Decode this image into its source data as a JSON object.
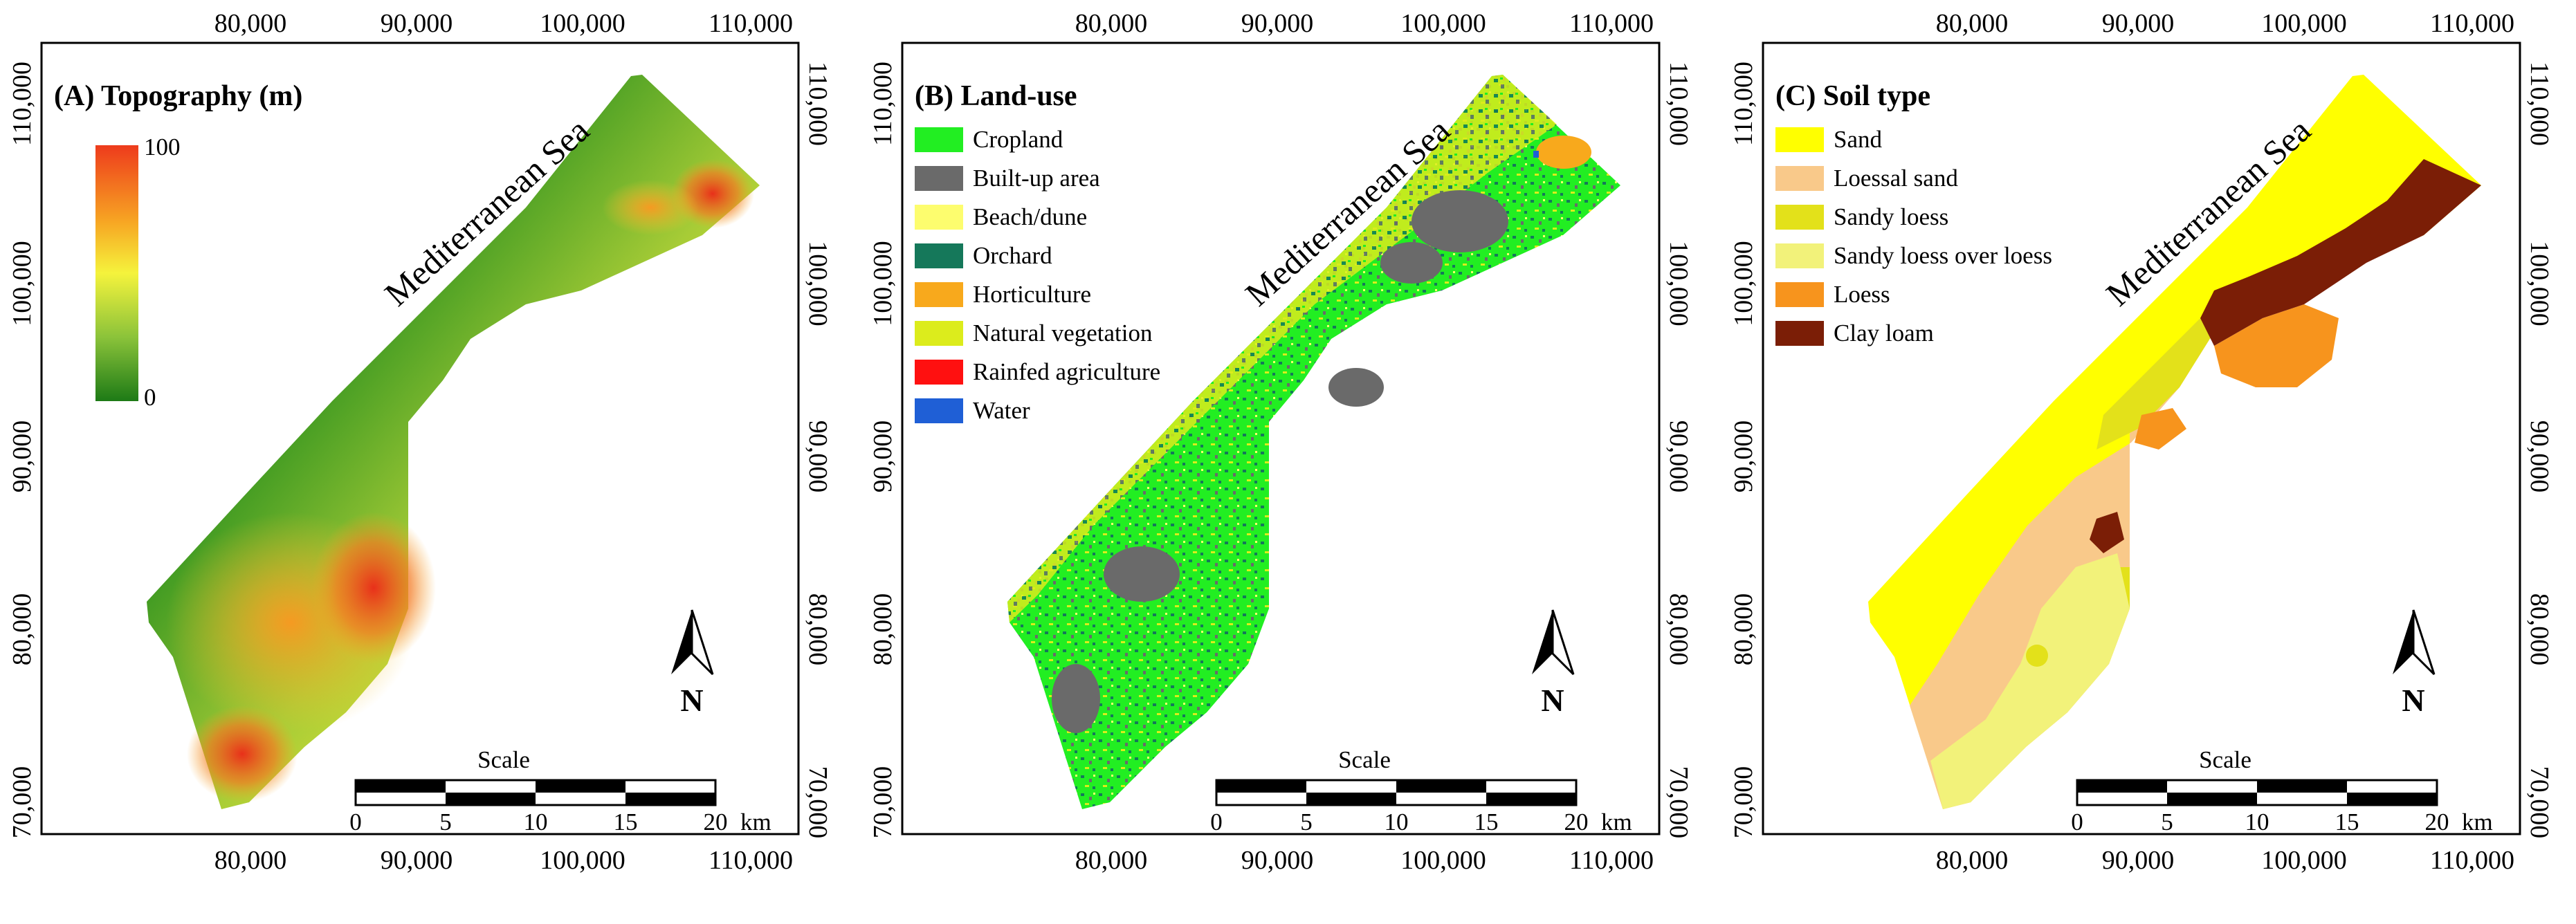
{
  "x_ticks": [
    "80,000",
    "90,000",
    "100,000",
    "110,000"
  ],
  "y_ticks": [
    "110,000",
    "100,000",
    "90,000",
    "80,000",
    "70,000"
  ],
  "sea_label": "Mediterranean Sea",
  "north_label": "N",
  "scale": {
    "title": "Scale",
    "ticks": [
      "0",
      "5",
      "10",
      "15",
      "20"
    ],
    "unit": "km"
  },
  "panels": [
    {
      "title": "(A) Topography (m)",
      "colorbar": {
        "max_label": "100",
        "min_label": "0",
        "colors": [
          "#ee3b1c",
          "#f7a623",
          "#f5f33c",
          "#8bc33a",
          "#1d7a16"
        ]
      }
    },
    {
      "title": "(B) Land-use",
      "legend": [
        {
          "label": "Cropland",
          "color": "#22ee22"
        },
        {
          "label": "Built-up area",
          "color": "#6a6a6a"
        },
        {
          "label": "Beach/dune",
          "color": "#fdfd6e"
        },
        {
          "label": "Orchard",
          "color": "#15785a"
        },
        {
          "label": "Horticulture",
          "color": "#f8a91c"
        },
        {
          "label": "Natural vegetation",
          "color": "#dcec1c"
        },
        {
          "label": "Rainfed agriculture",
          "color": "#ff1010"
        },
        {
          "label": "Water",
          "color": "#1f5fd6"
        }
      ]
    },
    {
      "title": "(C) Soil type",
      "legend": [
        {
          "label": "Sand",
          "color": "#ffff00"
        },
        {
          "label": "Loessal sand",
          "color": "#f9c98a"
        },
        {
          "label": "Sandy loess",
          "color": "#e3e11a"
        },
        {
          "label": "Sandy loess over loess",
          "color": "#f2f27a"
        },
        {
          "label": "Loess",
          "color": "#f7941d"
        },
        {
          "label": "Clay loam",
          "color": "#7b1e06"
        }
      ]
    }
  ]
}
